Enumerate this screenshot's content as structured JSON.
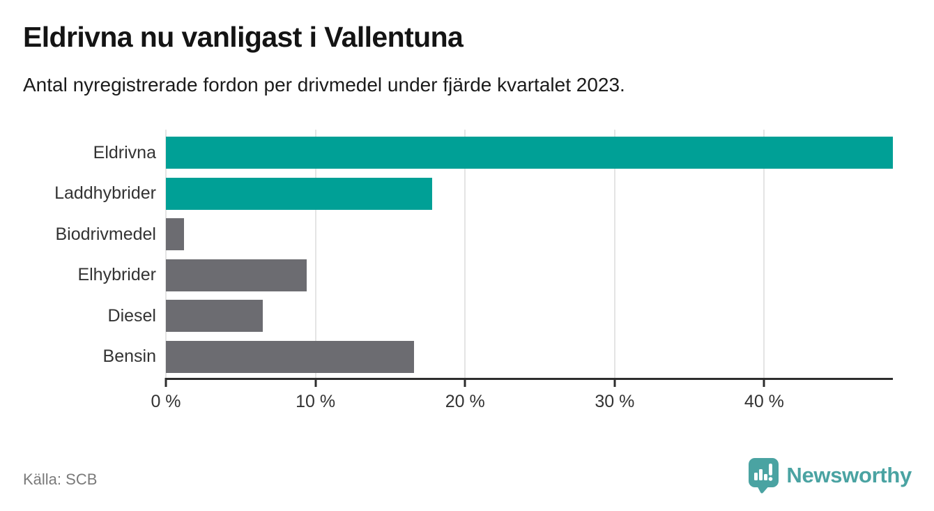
{
  "header": {
    "title": "Eldrivna nu vanligast i Vallentuna",
    "subtitle": "Antal nyregistrerade fordon per drivmedel under fjärde kvartalet 2023."
  },
  "footer": {
    "source": "Källa: SCB",
    "brand_name": "Newsworthy"
  },
  "colors": {
    "highlight_bar": "#00a096",
    "default_bar": "#6c6c71",
    "gridline": "#e4e4e4",
    "axis": "#2d2d2d",
    "tick_text": "#333333",
    "source_text": "#7a7a7a",
    "brand": "#4aa3a2"
  },
  "icons": {
    "brand_icon": "newsworthy-pin-barchart-icon"
  },
  "chart_data": {
    "type": "bar",
    "orientation": "horizontal",
    "title": "Eldrivna nu vanligast i Vallentuna",
    "subtitle": "Antal nyregistrerade fordon per drivmedel under fjärde kvartalet 2023.",
    "categories": [
      "Eldrivna",
      "Laddhybrider",
      "Biodrivmedel",
      "Elhybrider",
      "Diesel",
      "Bensin"
    ],
    "values": [
      48.6,
      17.8,
      1.2,
      9.4,
      6.5,
      16.6
    ],
    "unit": "%",
    "bar_colors": [
      "#00a096",
      "#00a096",
      "#6c6c71",
      "#6c6c71",
      "#6c6c71",
      "#6c6c71"
    ],
    "xlim": [
      0,
      48.6
    ],
    "xticks": [
      0,
      10,
      20,
      30,
      40
    ],
    "xtick_labels": [
      "0 %",
      "10 %",
      "20 %",
      "30 %",
      "40 %"
    ],
    "grid": true,
    "legend": false,
    "source": "SCB"
  }
}
